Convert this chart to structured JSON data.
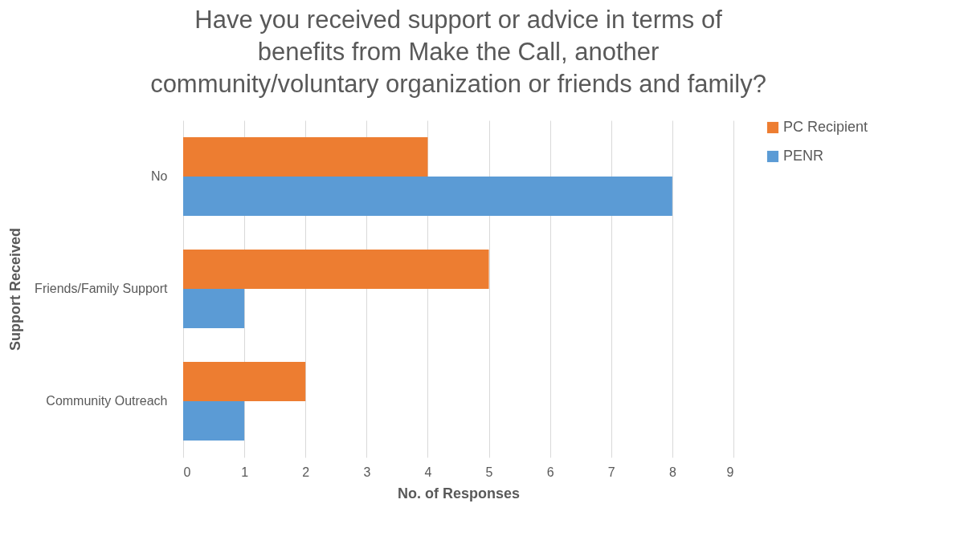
{
  "chart_data": {
    "type": "bar",
    "orientation": "horizontal",
    "title": "Have you received support or advice in terms of benefits from Make the Call, another community/voluntary organization or friends and family?",
    "xlabel": "No. of Responses",
    "ylabel": "Support Received",
    "categories": [
      "No",
      "Friends/Family Support",
      "Community Outreach"
    ],
    "series": [
      {
        "name": "PC Recipient",
        "color": "#ed7d31",
        "values": [
          4,
          5,
          2
        ]
      },
      {
        "name": "PENR",
        "color": "#5b9bd5",
        "values": [
          8,
          1,
          1
        ]
      }
    ],
    "xlim": [
      0,
      9
    ],
    "xticks": [
      0,
      1,
      2,
      3,
      4,
      5,
      6,
      7,
      8,
      9
    ],
    "grid": "x",
    "legend": "right"
  }
}
